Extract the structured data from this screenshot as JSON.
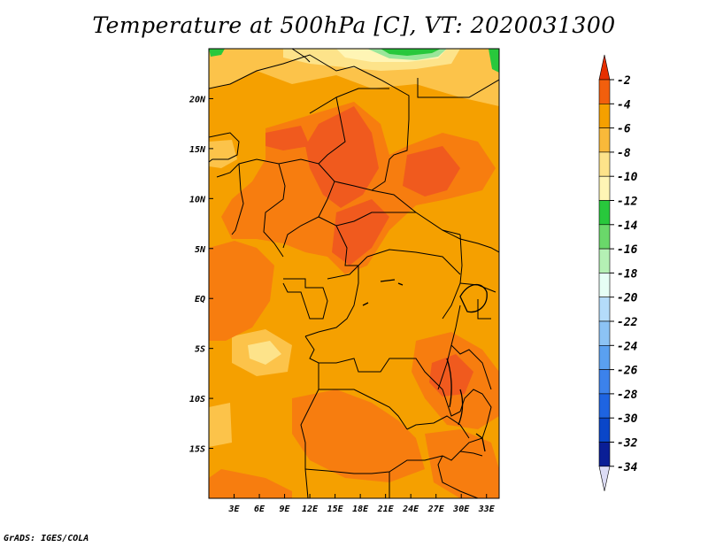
{
  "title": "Temperature at 500hPa [C], VT: 2020031300",
  "credit": "GrADS: IGES/COLA",
  "map": {
    "lon_range": [
      0,
      34.5
    ],
    "lat_range": [
      -20,
      25
    ],
    "lon_ticks": [
      "3E",
      "6E",
      "9E",
      "12E",
      "15E",
      "18E",
      "21E",
      "24E",
      "27E",
      "30E",
      "33E"
    ],
    "lat_ticks": [
      "20N",
      "15N",
      "10N",
      "5N",
      "EQ",
      "5S",
      "10S",
      "15S"
    ],
    "fill_colors": {
      "warm_core": "#f05a1e",
      "dominant": "#f5a000",
      "mid": "#f77d0f",
      "light": "#fcc34a",
      "pale": "#fde38a",
      "paler": "#fff5b5",
      "green": "#28c83c",
      "lightgreen": "#9ae69a"
    },
    "borders_color": "#000000"
  },
  "colorbar": {
    "labels": [
      "-2",
      "-4",
      "-6",
      "-8",
      "-10",
      "-12",
      "-14",
      "-16",
      "-18",
      "-20",
      "-22",
      "-24",
      "-26",
      "-28",
      "-30",
      "-32",
      "-34"
    ],
    "colors": [
      "#e62f00",
      "#f25f0d",
      "#f5a000",
      "#f9b93a",
      "#fde38a",
      "#fff5b5",
      "#28c83c",
      "#6ad86a",
      "#b4f0b4",
      "#e6fff5",
      "#b4dcfa",
      "#8cc3f5",
      "#5aa0f0",
      "#3c82eb",
      "#1e64e1",
      "#0a46c8",
      "#0a1e96",
      "#000078"
    ],
    "top_arrow_color": "#e62f00",
    "bottom_arrow_color": "#dcdcf5"
  }
}
